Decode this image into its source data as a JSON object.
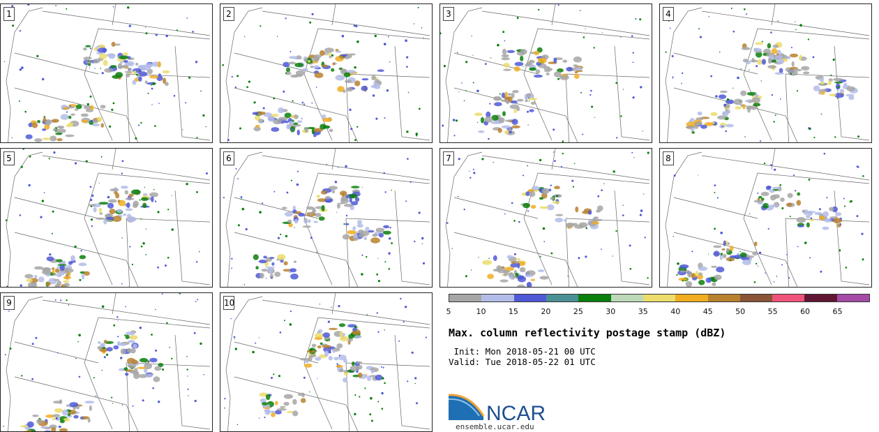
{
  "panels": [
    {
      "label": "1"
    },
    {
      "label": "2"
    },
    {
      "label": "3"
    },
    {
      "label": "4"
    },
    {
      "label": "5"
    },
    {
      "label": "6"
    },
    {
      "label": "7"
    },
    {
      "label": "8"
    },
    {
      "label": "9"
    },
    {
      "label": "10"
    }
  ],
  "colorbar": {
    "ticks": [
      "5",
      "10",
      "15",
      "20",
      "25",
      "30",
      "35",
      "40",
      "45",
      "50",
      "55",
      "60",
      "65"
    ],
    "colors": [
      "#a6a6a6",
      "#b3bce8",
      "#4f59d6",
      "#4a8f96",
      "#0b7f0b",
      "#bcd8b8",
      "#ebdc6b",
      "#f0ad20",
      "#b8812e",
      "#8a5437",
      "#ef5379",
      "#611634",
      "#a64aa8"
    ]
  },
  "title": "Max. column reflectivity postage stamp (dBZ)",
  "init": " Init: Mon 2018-05-21 00 UTC",
  "valid": "Valid: Tue 2018-05-22 01 UTC",
  "logo_text": "NCAR",
  "site": "ensemble.ucar.edu"
}
